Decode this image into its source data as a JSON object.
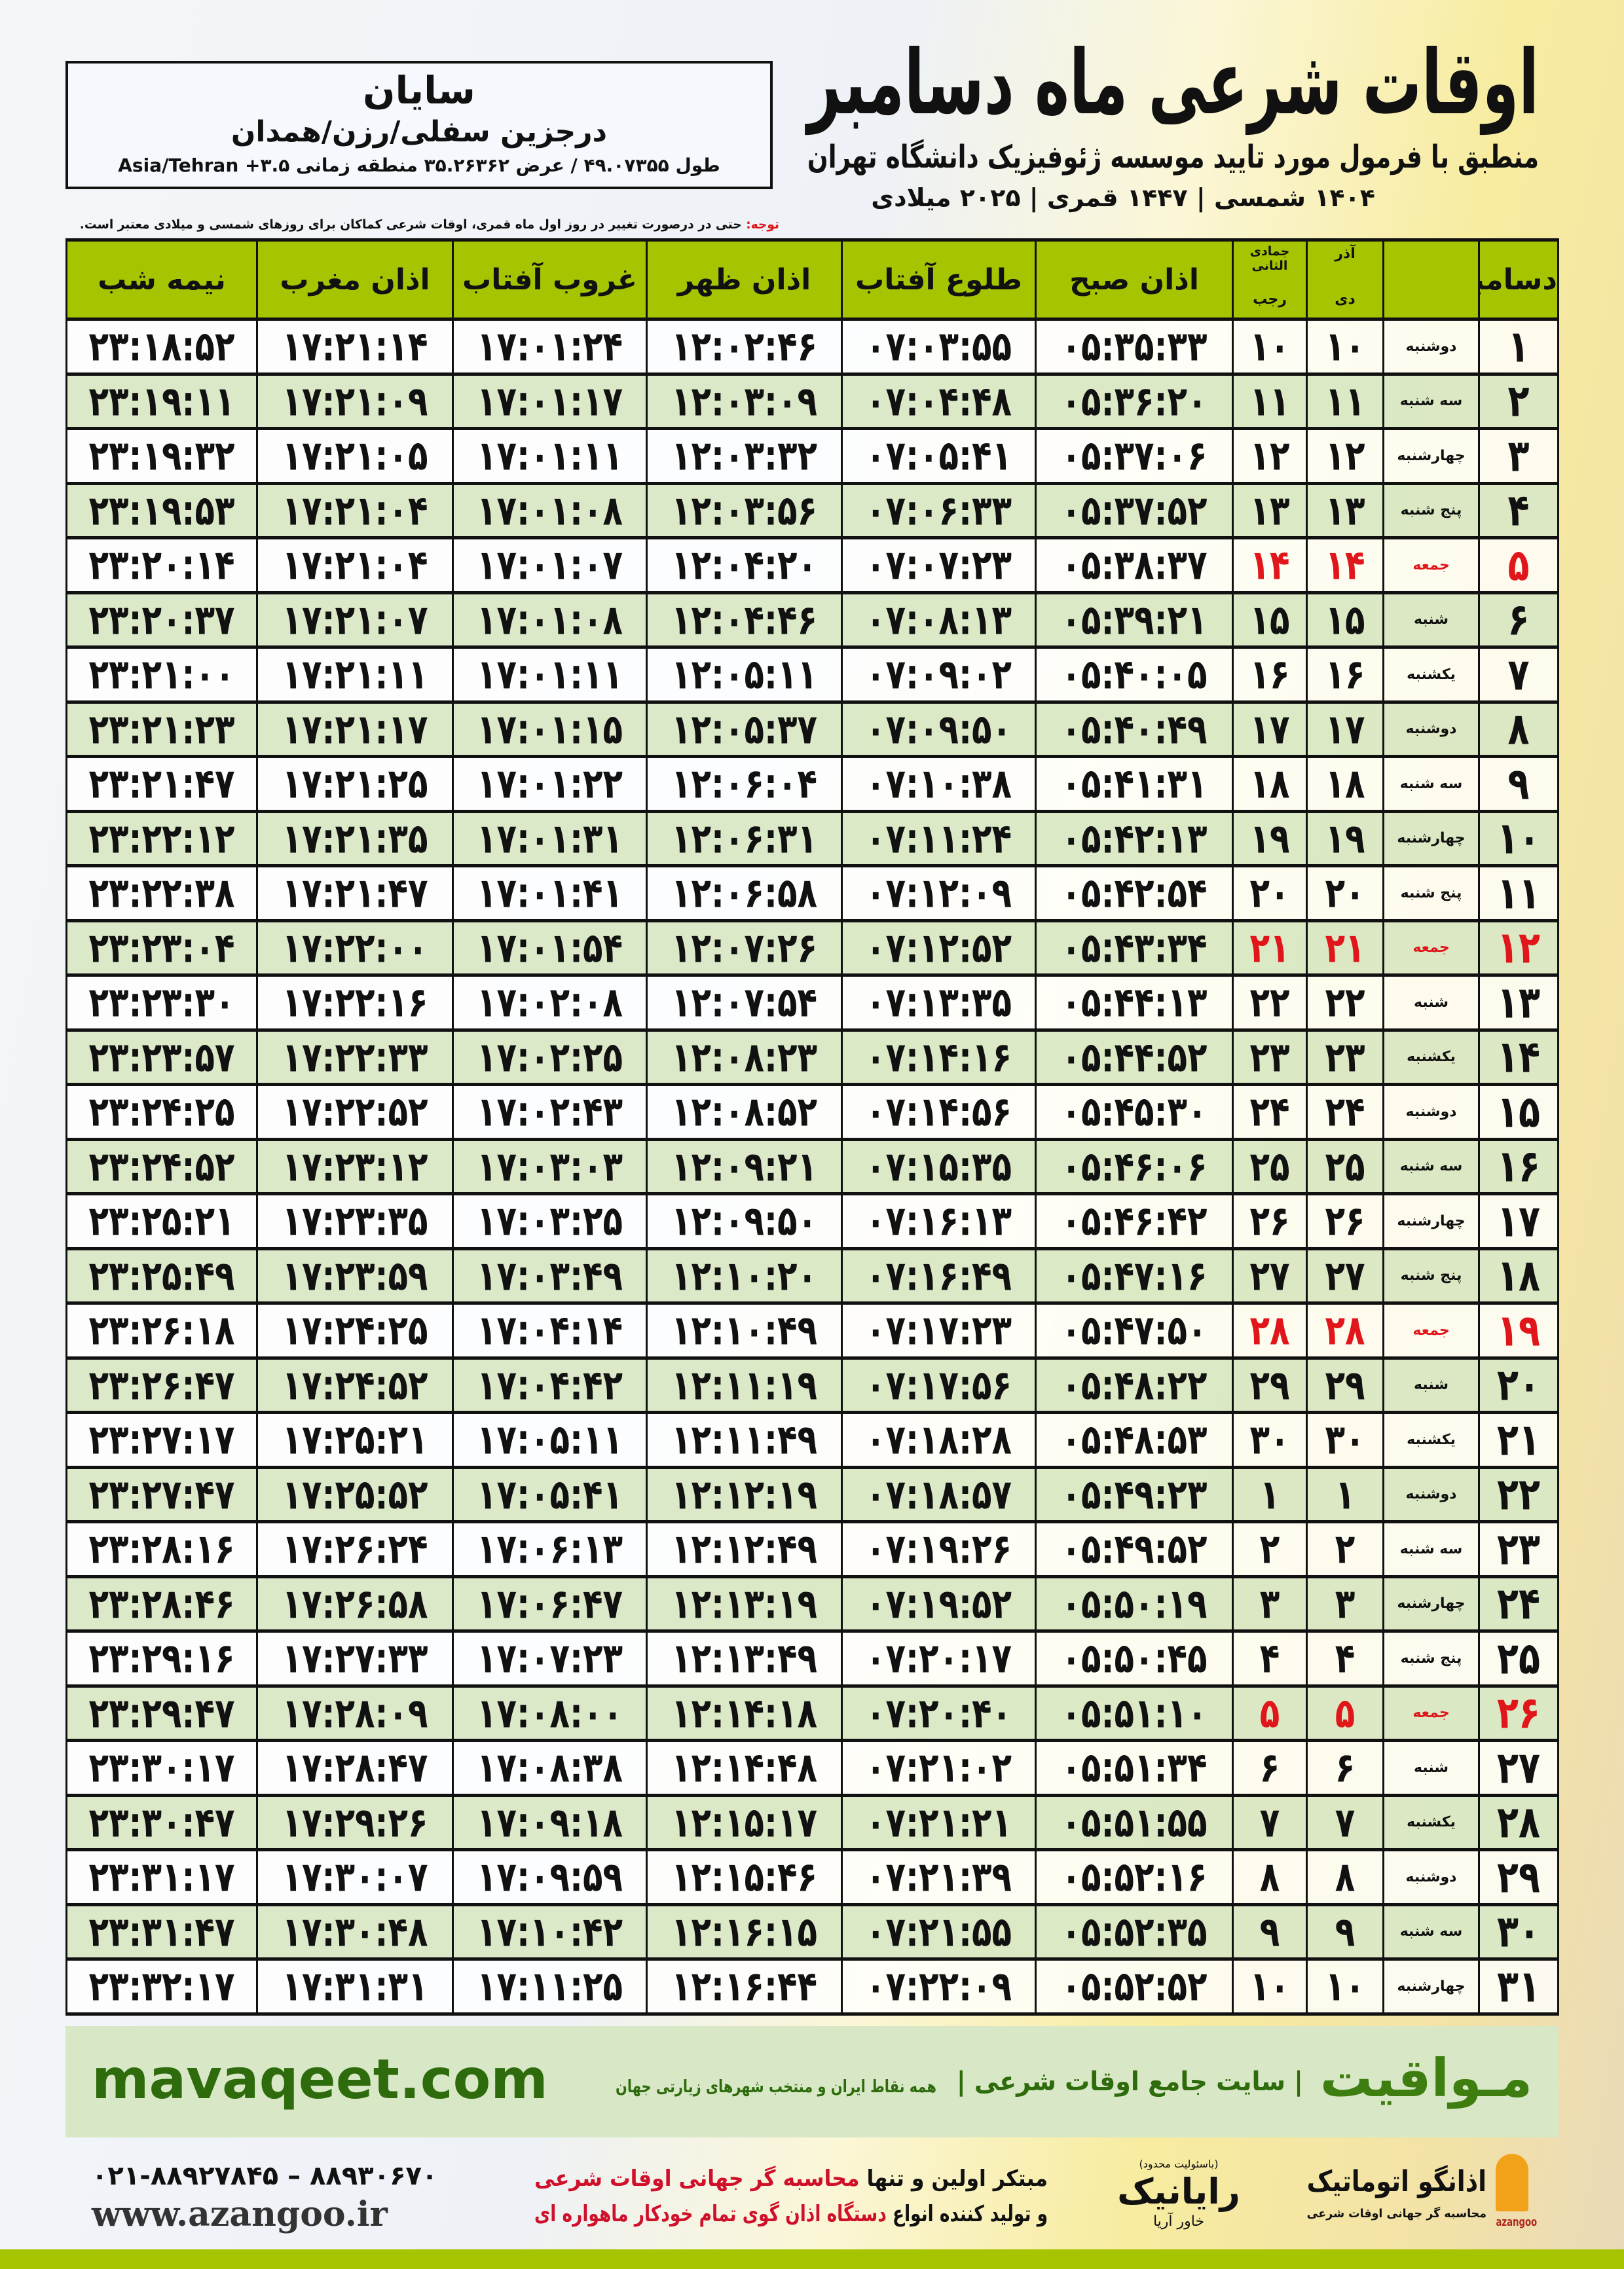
{
  "header": {
    "title": "اوقات شرعی ماه دسامبر",
    "subtitle": "منطبق با فرمول مورد تایید موسسه ژئوفیزیک دانشگاه تهران",
    "date_line": "۱۴۰۴ شمسی | ۱۴۴۷ قمری | ۲۰۲۵ میلادی"
  },
  "location": {
    "city": "سایان",
    "region": "درجزین سفلی/رزن/همدان",
    "coords": "طول ۴۹.۰۷۳۵۵ / عرض ۳۵.۲۶۳۶۲ منطقه زمانی",
    "timezone": "Asia/Tehran +۳.۵"
  },
  "note": {
    "label": "توجه:",
    "text": "حتی در درصورت تغییر در روز اول ماه قمری، اوقات شرعی کماکان برای روزهای شمسی و میلادی معتبر است."
  },
  "colors": {
    "header_green": "#a6c400",
    "row_alt": "#d9e8c5",
    "holiday_red": "#e0161b",
    "brand_green": "#2e6b0c"
  },
  "table": {
    "headers": {
      "month": "دسامبر",
      "solar_top": "آذر",
      "solar_bottom": "دی",
      "lunar_top": "جمادی الثانی",
      "lunar_bottom": "رجب",
      "fajr": "اذان صبح",
      "sunrise": "طلوع آفتاب",
      "dhuhr": "اذان ظهر",
      "sunset": "غروب آفتاب",
      "maghrib": "اذان مغرب",
      "midnight": "نیمه شب"
    },
    "rows": [
      [
        "۱",
        "دوشنبه",
        "۱۰",
        "۱۰",
        "۰۵:۳۵:۳۳",
        "۰۷:۰۳:۵۵",
        "۱۲:۰۲:۴۶",
        "۱۷:۰۱:۲۴",
        "۱۷:۲۱:۱۴",
        "۲۳:۱۸:۵۲",
        false
      ],
      [
        "۲",
        "سه شنبه",
        "۱۱",
        "۱۱",
        "۰۵:۳۶:۲۰",
        "۰۷:۰۴:۴۸",
        "۱۲:۰۳:۰۹",
        "۱۷:۰۱:۱۷",
        "۱۷:۲۱:۰۹",
        "۲۳:۱۹:۱۱",
        false
      ],
      [
        "۳",
        "چهارشنبه",
        "۱۲",
        "۱۲",
        "۰۵:۳۷:۰۶",
        "۰۷:۰۵:۴۱",
        "۱۲:۰۳:۳۲",
        "۱۷:۰۱:۱۱",
        "۱۷:۲۱:۰۵",
        "۲۳:۱۹:۳۲",
        false
      ],
      [
        "۴",
        "پنج شنبه",
        "۱۳",
        "۱۳",
        "۰۵:۳۷:۵۲",
        "۰۷:۰۶:۳۳",
        "۱۲:۰۳:۵۶",
        "۱۷:۰۱:۰۸",
        "۱۷:۲۱:۰۴",
        "۲۳:۱۹:۵۳",
        false
      ],
      [
        "۵",
        "جمعه",
        "۱۴",
        "۱۴",
        "۰۵:۳۸:۳۷",
        "۰۷:۰۷:۲۳",
        "۱۲:۰۴:۲۰",
        "۱۷:۰۱:۰۷",
        "۱۷:۲۱:۰۴",
        "۲۳:۲۰:۱۴",
        true
      ],
      [
        "۶",
        "شنبه",
        "۱۵",
        "۱۵",
        "۰۵:۳۹:۲۱",
        "۰۷:۰۸:۱۳",
        "۱۲:۰۴:۴۶",
        "۱۷:۰۱:۰۸",
        "۱۷:۲۱:۰۷",
        "۲۳:۲۰:۳۷",
        false
      ],
      [
        "۷",
        "یکشنبه",
        "۱۶",
        "۱۶",
        "۰۵:۴۰:۰۵",
        "۰۷:۰۹:۰۲",
        "۱۲:۰۵:۱۱",
        "۱۷:۰۱:۱۱",
        "۱۷:۲۱:۱۱",
        "۲۳:۲۱:۰۰",
        false
      ],
      [
        "۸",
        "دوشنبه",
        "۱۷",
        "۱۷",
        "۰۵:۴۰:۴۹",
        "۰۷:۰۹:۵۰",
        "۱۲:۰۵:۳۷",
        "۱۷:۰۱:۱۵",
        "۱۷:۲۱:۱۷",
        "۲۳:۲۱:۲۳",
        false
      ],
      [
        "۹",
        "سه شنبه",
        "۱۸",
        "۱۸",
        "۰۵:۴۱:۳۱",
        "۰۷:۱۰:۳۸",
        "۱۲:۰۶:۰۴",
        "۱۷:۰۱:۲۲",
        "۱۷:۲۱:۲۵",
        "۲۳:۲۱:۴۷",
        false
      ],
      [
        "۱۰",
        "چهارشنبه",
        "۱۹",
        "۱۹",
        "۰۵:۴۲:۱۳",
        "۰۷:۱۱:۲۴",
        "۱۲:۰۶:۳۱",
        "۱۷:۰۱:۳۱",
        "۱۷:۲۱:۳۵",
        "۲۳:۲۲:۱۲",
        false
      ],
      [
        "۱۱",
        "پنج شنبه",
        "۲۰",
        "۲۰",
        "۰۵:۴۲:۵۴",
        "۰۷:۱۲:۰۹",
        "۱۲:۰۶:۵۸",
        "۱۷:۰۱:۴۱",
        "۱۷:۲۱:۴۷",
        "۲۳:۲۲:۳۸",
        false
      ],
      [
        "۱۲",
        "جمعه",
        "۲۱",
        "۲۱",
        "۰۵:۴۳:۳۴",
        "۰۷:۱۲:۵۲",
        "۱۲:۰۷:۲۶",
        "۱۷:۰۱:۵۴",
        "۱۷:۲۲:۰۰",
        "۲۳:۲۳:۰۴",
        true
      ],
      [
        "۱۳",
        "شنبه",
        "۲۲",
        "۲۲",
        "۰۵:۴۴:۱۳",
        "۰۷:۱۳:۳۵",
        "۱۲:۰۷:۵۴",
        "۱۷:۰۲:۰۸",
        "۱۷:۲۲:۱۶",
        "۲۳:۲۳:۳۰",
        false
      ],
      [
        "۱۴",
        "یکشنبه",
        "۲۳",
        "۲۳",
        "۰۵:۴۴:۵۲",
        "۰۷:۱۴:۱۶",
        "۱۲:۰۸:۲۳",
        "۱۷:۰۲:۲۵",
        "۱۷:۲۲:۳۳",
        "۲۳:۲۳:۵۷",
        false
      ],
      [
        "۱۵",
        "دوشنبه",
        "۲۴",
        "۲۴",
        "۰۵:۴۵:۳۰",
        "۰۷:۱۴:۵۶",
        "۱۲:۰۸:۵۲",
        "۱۷:۰۲:۴۳",
        "۱۷:۲۲:۵۲",
        "۲۳:۲۴:۲۵",
        false
      ],
      [
        "۱۶",
        "سه شنبه",
        "۲۵",
        "۲۵",
        "۰۵:۴۶:۰۶",
        "۰۷:۱۵:۳۵",
        "۱۲:۰۹:۲۱",
        "۱۷:۰۳:۰۳",
        "۱۷:۲۳:۱۲",
        "۲۳:۲۴:۵۲",
        false
      ],
      [
        "۱۷",
        "چهارشنبه",
        "۲۶",
        "۲۶",
        "۰۵:۴۶:۴۲",
        "۰۷:۱۶:۱۳",
        "۱۲:۰۹:۵۰",
        "۱۷:۰۳:۲۵",
        "۱۷:۲۳:۳۵",
        "۲۳:۲۵:۲۱",
        false
      ],
      [
        "۱۸",
        "پنج شنبه",
        "۲۷",
        "۲۷",
        "۰۵:۴۷:۱۶",
        "۰۷:۱۶:۴۹",
        "۱۲:۱۰:۲۰",
        "۱۷:۰۳:۴۹",
        "۱۷:۲۳:۵۹",
        "۲۳:۲۵:۴۹",
        false
      ],
      [
        "۱۹",
        "جمعه",
        "۲۸",
        "۲۸",
        "۰۵:۴۷:۵۰",
        "۰۷:۱۷:۲۳",
        "۱۲:۱۰:۴۹",
        "۱۷:۰۴:۱۴",
        "۱۷:۲۴:۲۵",
        "۲۳:۲۶:۱۸",
        true
      ],
      [
        "۲۰",
        "شنبه",
        "۲۹",
        "۲۹",
        "۰۵:۴۸:۲۲",
        "۰۷:۱۷:۵۶",
        "۱۲:۱۱:۱۹",
        "۱۷:۰۴:۴۲",
        "۱۷:۲۴:۵۲",
        "۲۳:۲۶:۴۷",
        false
      ],
      [
        "۲۱",
        "یکشنبه",
        "۳۰",
        "۳۰",
        "۰۵:۴۸:۵۳",
        "۰۷:۱۸:۲۸",
        "۱۲:۱۱:۴۹",
        "۱۷:۰۵:۱۱",
        "۱۷:۲۵:۲۱",
        "۲۳:۲۷:۱۷",
        false
      ],
      [
        "۲۲",
        "دوشنبه",
        "۱",
        "۱",
        "۰۵:۴۹:۲۳",
        "۰۷:۱۸:۵۷",
        "۱۲:۱۲:۱۹",
        "۱۷:۰۵:۴۱",
        "۱۷:۲۵:۵۲",
        "۲۳:۲۷:۴۷",
        false
      ],
      [
        "۲۳",
        "سه شنبه",
        "۲",
        "۲",
        "۰۵:۴۹:۵۲",
        "۰۷:۱۹:۲۶",
        "۱۲:۱۲:۴۹",
        "۱۷:۰۶:۱۳",
        "۱۷:۲۶:۲۴",
        "۲۳:۲۸:۱۶",
        false
      ],
      [
        "۲۴",
        "چهارشنبه",
        "۳",
        "۳",
        "۰۵:۵۰:۱۹",
        "۰۷:۱۹:۵۲",
        "۱۲:۱۳:۱۹",
        "۱۷:۰۶:۴۷",
        "۱۷:۲۶:۵۸",
        "۲۳:۲۸:۴۶",
        false
      ],
      [
        "۲۵",
        "پنج شنبه",
        "۴",
        "۴",
        "۰۵:۵۰:۴۵",
        "۰۷:۲۰:۱۷",
        "۱۲:۱۳:۴۹",
        "۱۷:۰۷:۲۳",
        "۱۷:۲۷:۳۳",
        "۲۳:۲۹:۱۶",
        false
      ],
      [
        "۲۶",
        "جمعه",
        "۵",
        "۵",
        "۰۵:۵۱:۱۰",
        "۰۷:۲۰:۴۰",
        "۱۲:۱۴:۱۸",
        "۱۷:۰۸:۰۰",
        "۱۷:۲۸:۰۹",
        "۲۳:۲۹:۴۷",
        true
      ],
      [
        "۲۷",
        "شنبه",
        "۶",
        "۶",
        "۰۵:۵۱:۳۴",
        "۰۷:۲۱:۰۲",
        "۱۲:۱۴:۴۸",
        "۱۷:۰۸:۳۸",
        "۱۷:۲۸:۴۷",
        "۲۳:۳۰:۱۷",
        false
      ],
      [
        "۲۸",
        "یکشنبه",
        "۷",
        "۷",
        "۰۵:۵۱:۵۵",
        "۰۷:۲۱:۲۱",
        "۱۲:۱۵:۱۷",
        "۱۷:۰۹:۱۸",
        "۱۷:۲۹:۲۶",
        "۲۳:۳۰:۴۷",
        false
      ],
      [
        "۲۹",
        "دوشنبه",
        "۸",
        "۸",
        "۰۵:۵۲:۱۶",
        "۰۷:۲۱:۳۹",
        "۱۲:۱۵:۴۶",
        "۱۷:۰۹:۵۹",
        "۱۷:۳۰:۰۷",
        "۲۳:۳۱:۱۷",
        false
      ],
      [
        "۳۰",
        "سه شنبه",
        "۹",
        "۹",
        "۰۵:۵۲:۳۵",
        "۰۷:۲۱:۵۵",
        "۱۲:۱۶:۱۵",
        "۱۷:۱۰:۴۲",
        "۱۷:۳۰:۴۸",
        "۲۳:۳۱:۴۷",
        false
      ],
      [
        "۳۱",
        "چهارشنبه",
        "۱۰",
        "۱۰",
        "۰۵:۵۲:۵۲",
        "۰۷:۲۲:۰۹",
        "۱۲:۱۶:۴۴",
        "۱۷:۱۱:۲۵",
        "۱۷:۳۱:۳۱",
        "۲۳:۳۲:۱۷",
        false
      ]
    ]
  },
  "footer": {
    "site": "mavaqeet.com",
    "brand": "مـواقیت",
    "brand_tagline": "| سایت جامع اوقات شرعی |",
    "brand_sub": "همه نقاط ایران و منتخب شهرهای زیارتی جهان",
    "phone": "۰۲۱-۸۸۹۲۷۸۴۵ – ۸۸۹۳۰۶۷۰",
    "web": "www.azangoo.ir",
    "line1_a": "مبتکر اولین و تنها ",
    "line1_b": "محاسبه گر جهانی اوقات شرعی",
    "line2_a": "و تولید کننده انواع ",
    "line2_b": "دستگاه اذان گوی تمام خودکار ماهواره ای",
    "rayanik_name": "رایانیک",
    "rayanik_sub": "خاور آریا",
    "rayanik_note": "(باسئولیت محدود)",
    "azangoo_name": "اذانگو اتوماتیک",
    "azangoo_sub": "محاسبه گر جهانی اوقات شرعی",
    "azangoo_en": "azangoo"
  }
}
